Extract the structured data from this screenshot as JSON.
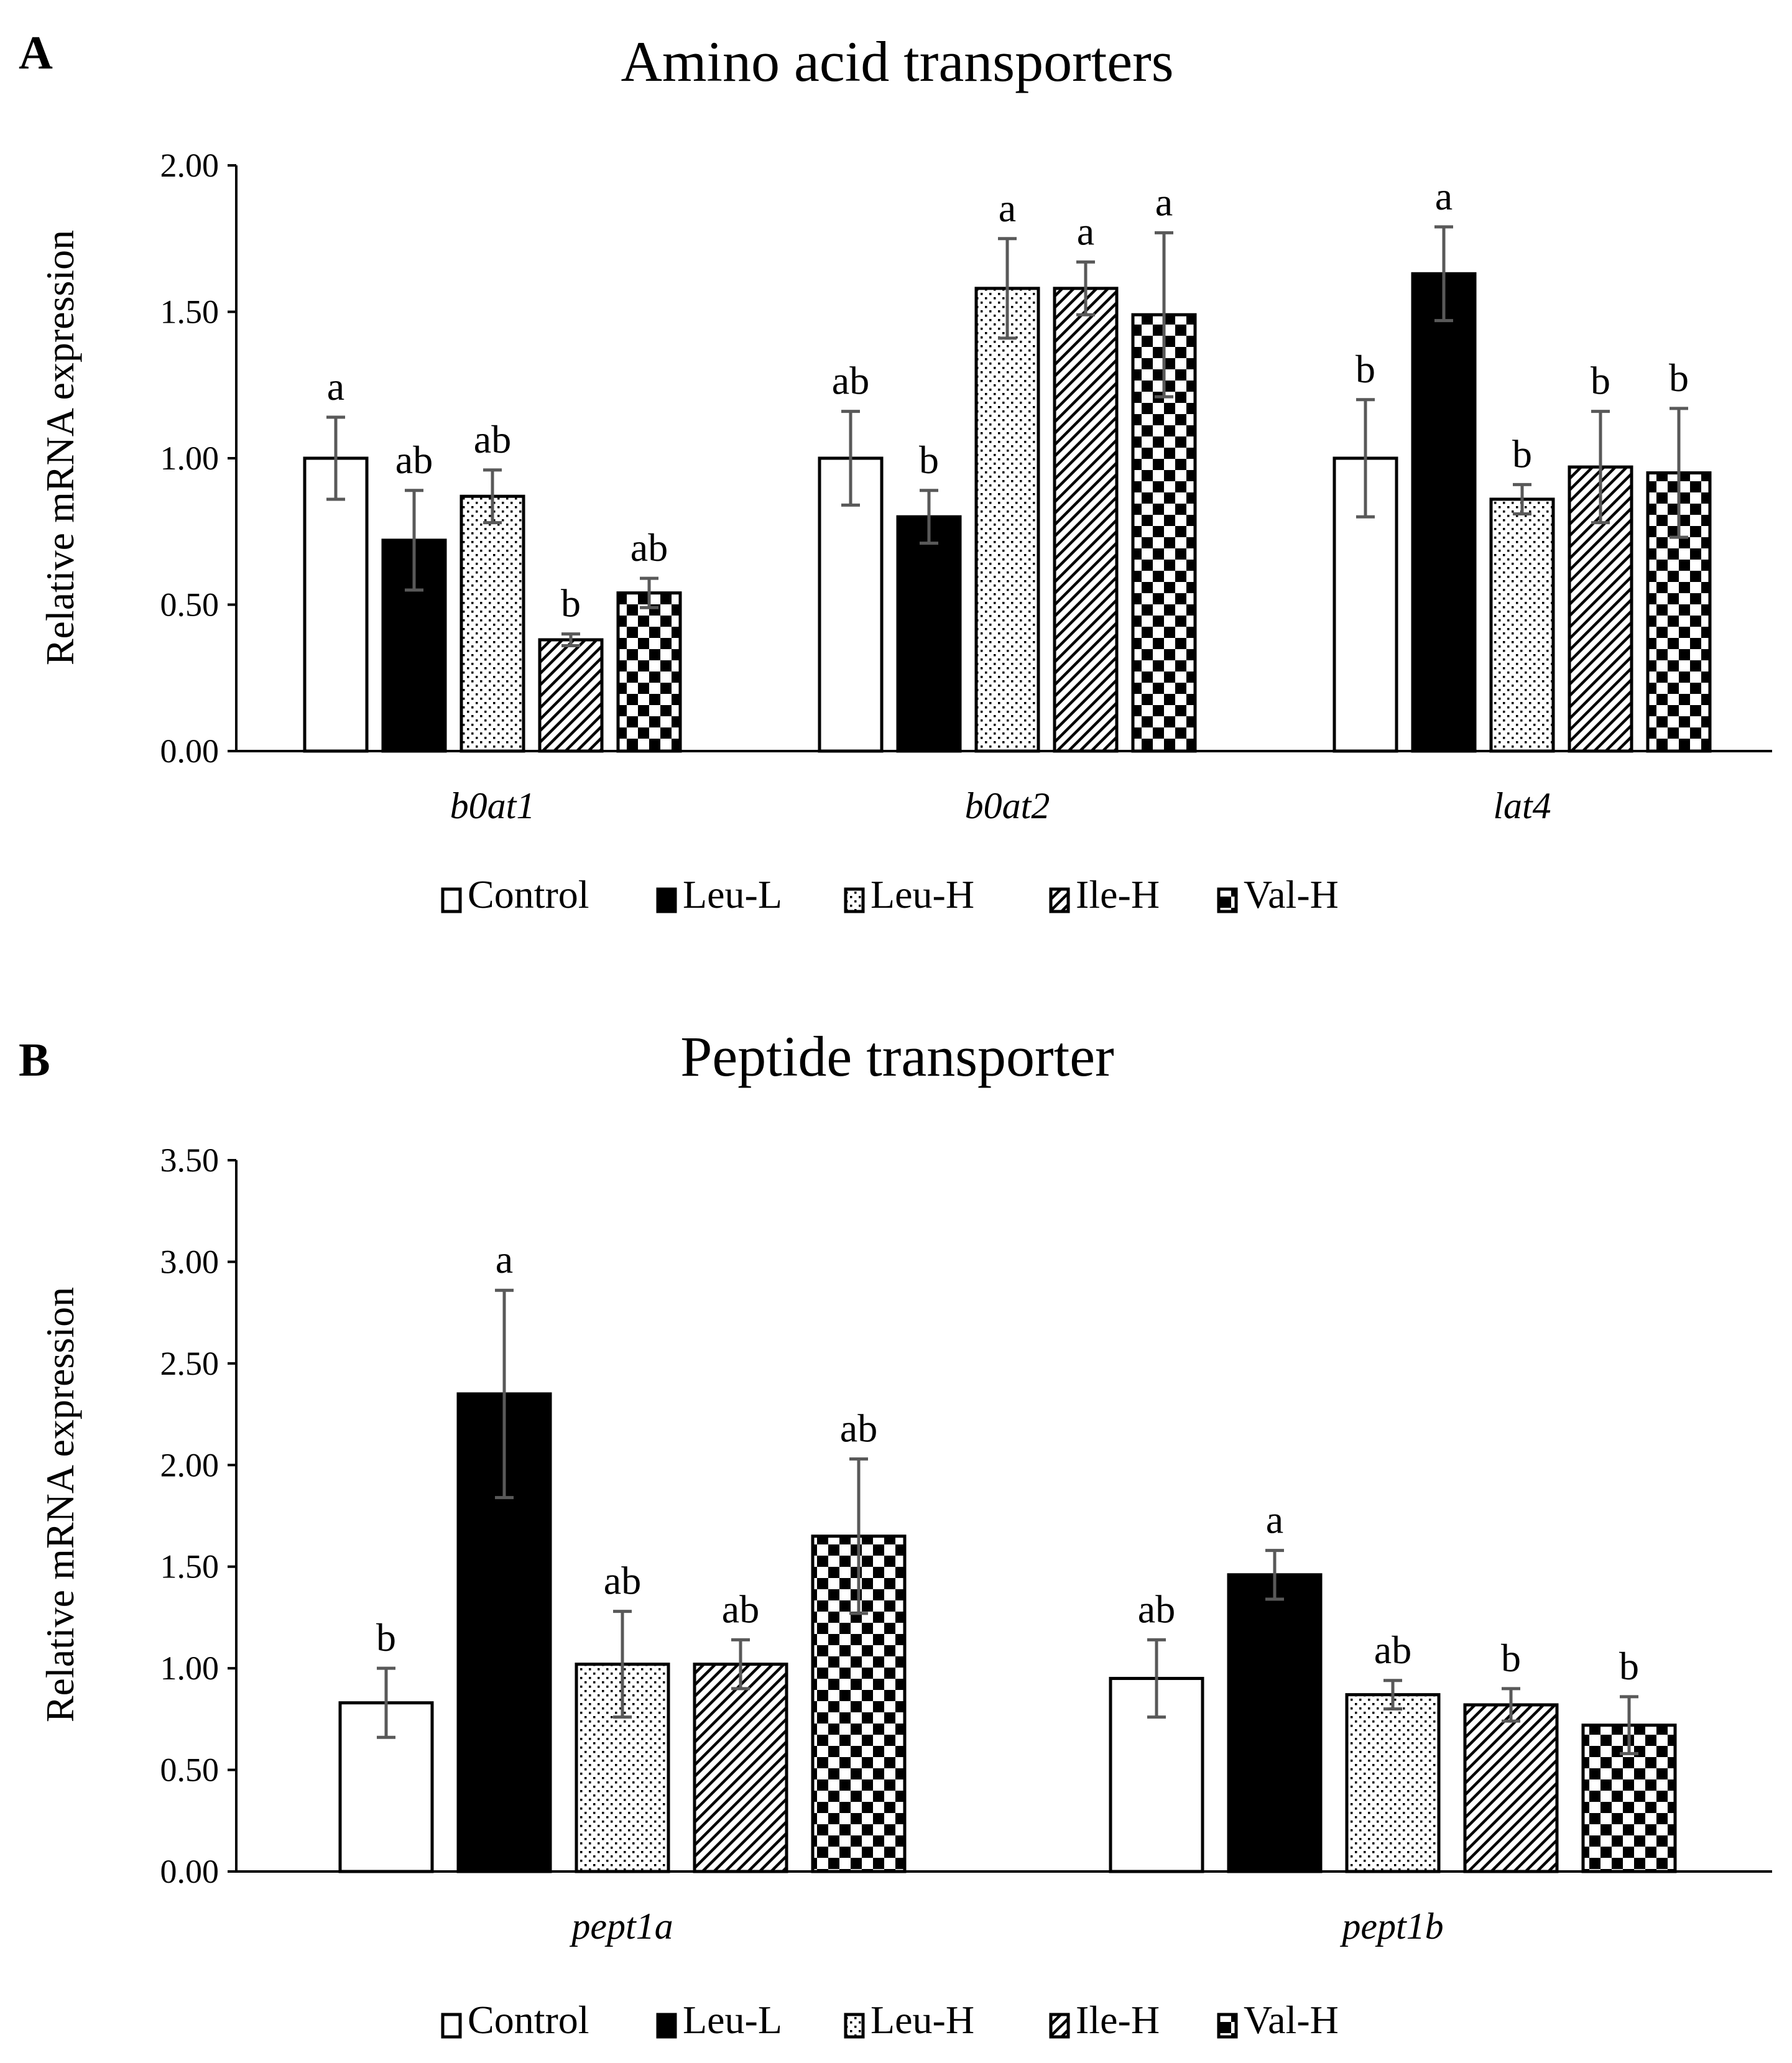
{
  "legend_entries": [
    "Control",
    "Leu-L",
    "Leu-H",
    "Ile-H",
    "Val-H"
  ],
  "chart_data": [
    {
      "type": "bar",
      "panel_letter": "A",
      "title": "Amino acid transporters",
      "ylabel": "Relative mRNA expression",
      "xlabel": "",
      "ylim": [
        0,
        2.0
      ],
      "yticks": [
        "0.00",
        "0.50",
        "1.00",
        "1.50",
        "2.00"
      ],
      "categories": [
        "b0at1",
        "b0at2",
        "lat4"
      ],
      "series": [
        {
          "name": "Control",
          "fill": "white",
          "values": [
            1.0,
            1.0,
            1.0
          ],
          "errors": [
            0.14,
            0.16,
            0.2
          ],
          "letters": [
            "a",
            "ab",
            "b"
          ]
        },
        {
          "name": "Leu-L",
          "fill": "black",
          "values": [
            0.72,
            0.8,
            1.63
          ],
          "errors": [
            0.17,
            0.09,
            0.16
          ],
          "letters": [
            "ab",
            "b",
            "a"
          ]
        },
        {
          "name": "Leu-H",
          "fill": "dots",
          "values": [
            0.87,
            1.58,
            0.86
          ],
          "errors": [
            0.09,
            0.17,
            0.05
          ],
          "letters": [
            "ab",
            "a",
            "b"
          ]
        },
        {
          "name": "Ile-H",
          "fill": "diag",
          "values": [
            0.38,
            1.58,
            0.97
          ],
          "errors": [
            0.02,
            0.09,
            0.19
          ],
          "letters": [
            "b",
            "a",
            "b"
          ]
        },
        {
          "name": "Val-H",
          "fill": "checker",
          "values": [
            0.54,
            1.49,
            0.95
          ],
          "errors": [
            0.05,
            0.28,
            0.22
          ],
          "letters": [
            "ab",
            "a",
            "b"
          ]
        }
      ],
      "grid": false,
      "legend_position": "bottom"
    },
    {
      "type": "bar",
      "panel_letter": "B",
      "title": "Peptide transporter",
      "ylabel": "Relative mRNA expression",
      "xlabel": "",
      "ylim": [
        0,
        3.5
      ],
      "yticks": [
        "0.00",
        "0.50",
        "1.00",
        "1.50",
        "2.00",
        "2.50",
        "3.00",
        "3.50"
      ],
      "categories": [
        "pept1a",
        "pept1b"
      ],
      "series": [
        {
          "name": "Control",
          "fill": "white",
          "values": [
            0.83,
            0.95
          ],
          "errors": [
            0.17,
            0.19
          ],
          "letters": [
            "b",
            "ab"
          ]
        },
        {
          "name": "Leu-L",
          "fill": "black",
          "values": [
            2.35,
            1.46
          ],
          "errors": [
            0.51,
            0.12
          ],
          "letters": [
            "a",
            "a"
          ]
        },
        {
          "name": "Leu-H",
          "fill": "dots",
          "values": [
            1.02,
            0.87
          ],
          "errors": [
            0.26,
            0.07
          ],
          "letters": [
            "ab",
            "ab"
          ]
        },
        {
          "name": "Ile-H",
          "fill": "diag",
          "values": [
            1.02,
            0.82
          ],
          "errors": [
            0.12,
            0.08
          ],
          "letters": [
            "ab",
            "b"
          ]
        },
        {
          "name": "Val-H",
          "fill": "checker",
          "values": [
            1.65,
            0.72
          ],
          "errors": [
            0.38,
            0.14
          ],
          "letters": [
            "ab",
            "b"
          ]
        }
      ],
      "grid": false,
      "legend_position": "bottom"
    }
  ]
}
